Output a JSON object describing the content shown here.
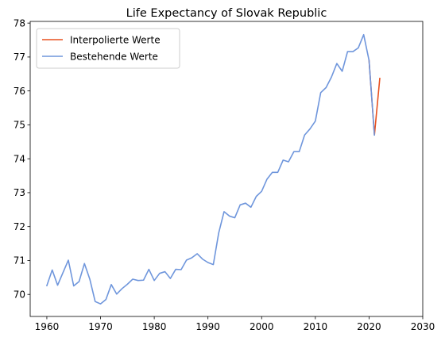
{
  "chart_data": {
    "type": "line",
    "title": "Life Expectancy of Slovak Republic",
    "xlabel": "",
    "ylabel": "",
    "xlim": [
      1956.9,
      2030
    ],
    "ylim": [
      69.35,
      78.05
    ],
    "xticks": [
      1960,
      1970,
      1980,
      1990,
      2000,
      2010,
      2020,
      2030
    ],
    "yticks": [
      70,
      71,
      72,
      73,
      74,
      75,
      76,
      77,
      78
    ],
    "grid": false,
    "legend_position": "top-left",
    "series": [
      {
        "name": "Interpolierte Werte",
        "color": "#e8501e",
        "points": [
          [
            2020,
            76.9
          ],
          [
            2021,
            74.7
          ],
          [
            2022,
            76.37
          ]
        ]
      },
      {
        "name": "Bestehende Werte",
        "color": "#6f96dc",
        "points": [
          [
            1960,
            70.26
          ],
          [
            1961,
            70.72
          ],
          [
            1962,
            70.27
          ],
          [
            1963,
            70.64
          ],
          [
            1964,
            71.01
          ],
          [
            1965,
            70.25
          ],
          [
            1966,
            70.38
          ],
          [
            1967,
            70.91
          ],
          [
            1968,
            70.45
          ],
          [
            1969,
            69.79
          ],
          [
            1970,
            69.72
          ],
          [
            1971,
            69.85
          ],
          [
            1972,
            70.29
          ],
          [
            1973,
            70.01
          ],
          [
            1974,
            70.17
          ],
          [
            1975,
            70.3
          ],
          [
            1976,
            70.45
          ],
          [
            1977,
            70.41
          ],
          [
            1978,
            70.42
          ],
          [
            1979,
            70.74
          ],
          [
            1980,
            70.41
          ],
          [
            1981,
            70.62
          ],
          [
            1982,
            70.67
          ],
          [
            1983,
            70.47
          ],
          [
            1984,
            70.74
          ],
          [
            1985,
            70.73
          ],
          [
            1986,
            71.01
          ],
          [
            1987,
            71.08
          ],
          [
            1988,
            71.2
          ],
          [
            1989,
            71.04
          ],
          [
            1990,
            70.94
          ],
          [
            1991,
            70.88
          ],
          [
            1992,
            71.81
          ],
          [
            1993,
            72.44
          ],
          [
            1994,
            72.31
          ],
          [
            1995,
            72.26
          ],
          [
            1996,
            72.64
          ],
          [
            1997,
            72.69
          ],
          [
            1998,
            72.57
          ],
          [
            1999,
            72.89
          ],
          [
            2000,
            73.04
          ],
          [
            2001,
            73.4
          ],
          [
            2002,
            73.6
          ],
          [
            2003,
            73.6
          ],
          [
            2004,
            73.96
          ],
          [
            2005,
            73.91
          ],
          [
            2006,
            74.21
          ],
          [
            2007,
            74.21
          ],
          [
            2008,
            74.7
          ],
          [
            2009,
            74.88
          ],
          [
            2010,
            75.11
          ],
          [
            2011,
            75.95
          ],
          [
            2012,
            76.1
          ],
          [
            2013,
            76.41
          ],
          [
            2014,
            76.81
          ],
          [
            2015,
            76.58
          ],
          [
            2016,
            77.16
          ],
          [
            2017,
            77.16
          ],
          [
            2018,
            77.27
          ],
          [
            2019,
            77.66
          ],
          [
            2020,
            76.9
          ],
          [
            2021,
            74.7
          ]
        ]
      }
    ]
  }
}
